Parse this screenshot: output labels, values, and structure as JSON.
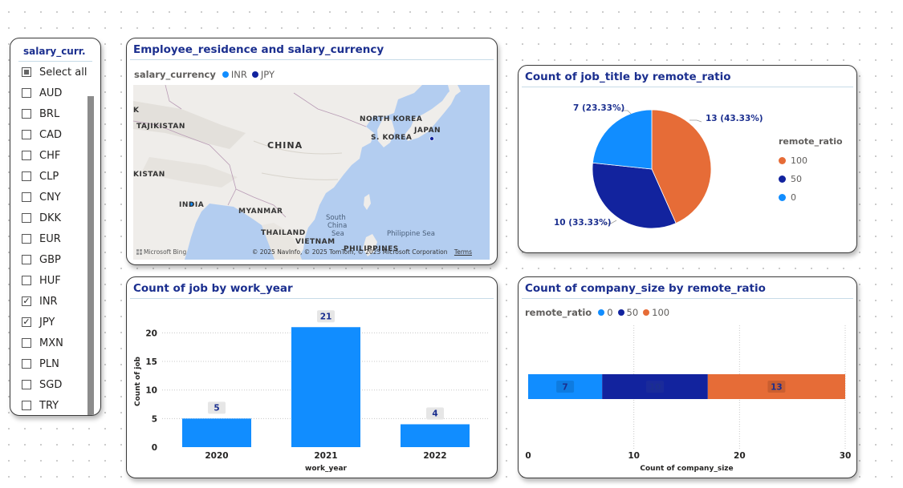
{
  "slicer": {
    "title": "salary_curr...",
    "items": [
      {
        "label": "Select all",
        "state": "partial"
      },
      {
        "label": "AUD",
        "state": "unchecked"
      },
      {
        "label": "BRL",
        "state": "unchecked"
      },
      {
        "label": "CAD",
        "state": "unchecked"
      },
      {
        "label": "CHF",
        "state": "unchecked"
      },
      {
        "label": "CLP",
        "state": "unchecked"
      },
      {
        "label": "CNY",
        "state": "unchecked"
      },
      {
        "label": "DKK",
        "state": "unchecked"
      },
      {
        "label": "EUR",
        "state": "unchecked"
      },
      {
        "label": "GBP",
        "state": "unchecked"
      },
      {
        "label": "HUF",
        "state": "unchecked"
      },
      {
        "label": "INR",
        "state": "checked"
      },
      {
        "label": "JPY",
        "state": "checked"
      },
      {
        "label": "MXN",
        "state": "unchecked"
      },
      {
        "label": "PLN",
        "state": "unchecked"
      },
      {
        "label": "SGD",
        "state": "unchecked"
      },
      {
        "label": "TRY",
        "state": "unchecked"
      }
    ]
  },
  "map": {
    "title": "Employee_residence and salary_currency",
    "legend_title": "salary_currency",
    "legend": [
      {
        "name": "INR",
        "color": "#118dff"
      },
      {
        "name": "JPY",
        "color": "#12239e"
      }
    ],
    "labels": {
      "tajikistan": "TAJIKISTAN",
      "china": "CHINA",
      "north_korea": "NORTH KOREA",
      "south_korea": "S. KOREA",
      "japan": "JAPAN",
      "kistan": "KISTAN",
      "india": "INDIA",
      "myanmar": "MYANMAR",
      "thailand": "THAILAND",
      "vietnam": "VIETNAM",
      "philippines": "PHILIPPINES",
      "south_china_sea_1": "South",
      "south_china_sea_2": "China",
      "south_china_sea_3": "Sea",
      "philippine_sea": "Philippine Sea"
    },
    "copyright": "© 2025 NavInfo, © 2025 TomTom, © 2025 Microsoft Corporation",
    "terms": "Terms",
    "provider": "Microsoft Bing"
  },
  "pie": {
    "title": "Count of job_title by remote_ratio",
    "legend_title": "remote_ratio",
    "slices": [
      {
        "name": "100",
        "value": 13,
        "label": "13 (43.33%)",
        "color": "#e66c37"
      },
      {
        "name": "50",
        "value": 10,
        "label": "10 (33.33%)",
        "color": "#12239e"
      },
      {
        "name": "0",
        "value": 7,
        "label": "7 (23.33%)",
        "color": "#118dff"
      }
    ]
  },
  "stack": {
    "title": "Count of company_size by remote_ratio",
    "legend_title": "remote_ratio",
    "legend": [
      {
        "name": "0",
        "color": "#118dff"
      },
      {
        "name": "50",
        "color": "#12239e"
      },
      {
        "name": "100",
        "color": "#e66c37"
      }
    ]
  },
  "bar": {
    "title": "Count of job by work_year"
  },
  "chart_data": [
    {
      "type": "bar",
      "title": "Count of job by work_year",
      "categories": [
        "2020",
        "2021",
        "2022"
      ],
      "values": [
        5,
        21,
        4
      ],
      "xlabel": "work_year",
      "ylabel": "Count of job",
      "yticks": [
        "0",
        "5",
        "10",
        "15",
        "20"
      ],
      "ylim": [
        0,
        23
      ],
      "color": "#118dff"
    },
    {
      "type": "pie",
      "title": "Count of job_title by remote_ratio",
      "categories": [
        "100",
        "50",
        "0"
      ],
      "values": [
        13,
        10,
        7
      ]
    },
    {
      "type": "bar",
      "orientation": "horizontal-stacked",
      "title": "Count of company_size by remote_ratio",
      "xlabel": "Count of company_size",
      "xticks": [
        "0",
        "10",
        "20",
        "30"
      ],
      "xlim": [
        0,
        30
      ],
      "series": [
        {
          "name": "0",
          "values": [
            7
          ],
          "label": "7",
          "color": "#118dff"
        },
        {
          "name": "50",
          "values": [
            10
          ],
          "label": "10",
          "color": "#12239e"
        },
        {
          "name": "100",
          "values": [
            13
          ],
          "label": "13",
          "color": "#e66c37"
        }
      ]
    }
  ]
}
